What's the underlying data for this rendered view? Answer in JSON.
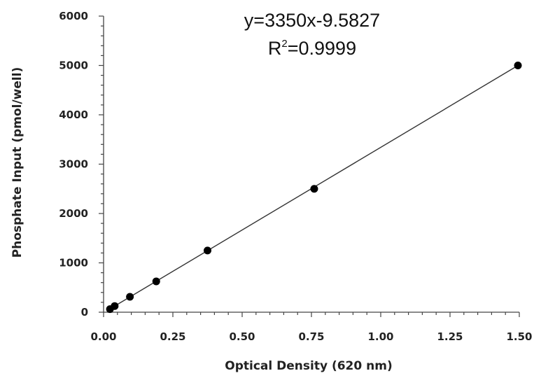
{
  "chart_data": {
    "type": "scatter",
    "xlabel": "Optical Density (620 nm)",
    "ylabel": "Phosphate Input (pmol/well)",
    "xlim": [
      0,
      1.5
    ],
    "ylim": [
      0,
      6000
    ],
    "x_ticks": [
      "0.00",
      "0.25",
      "0.50",
      "0.75",
      "1.00",
      "1.25",
      "1.50"
    ],
    "y_ticks": [
      "0",
      "1000",
      "2000",
      "3000",
      "4000",
      "5000",
      "6000"
    ],
    "x_tick_values": [
      0,
      0.25,
      0.5,
      0.75,
      1.0,
      1.25,
      1.5
    ],
    "y_tick_values": [
      0,
      1000,
      2000,
      3000,
      4000,
      5000,
      6000
    ],
    "points": [
      {
        "x": 0.023,
        "y": 62
      },
      {
        "x": 0.04,
        "y": 125
      },
      {
        "x": 0.095,
        "y": 312
      },
      {
        "x": 0.19,
        "y": 625
      },
      {
        "x": 0.375,
        "y": 1250
      },
      {
        "x": 0.76,
        "y": 2500
      },
      {
        "x": 1.495,
        "y": 5000
      }
    ],
    "fit": {
      "slope": 3350,
      "intercept": -9.5827,
      "x_range": [
        0.023,
        1.495
      ]
    },
    "equation": "y=3350x-9.5827",
    "r2_prefix": "R",
    "r2_superscript": "2",
    "r2_value": "=0.9999",
    "grid": false,
    "line_color": "#333333",
    "point_color": "#000000"
  }
}
